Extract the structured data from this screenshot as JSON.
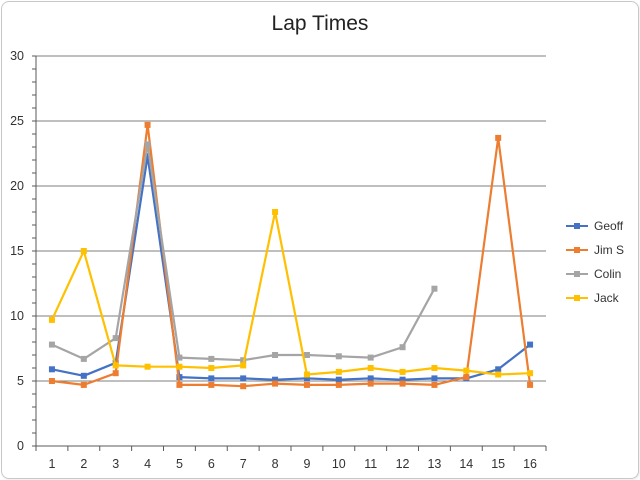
{
  "chart_data": {
    "type": "line",
    "title": "Lap Times",
    "xlabel": "",
    "ylabel": "",
    "categories": [
      "1",
      "2",
      "3",
      "4",
      "5",
      "6",
      "7",
      "8",
      "9",
      "10",
      "11",
      "12",
      "13",
      "14",
      "15",
      "16"
    ],
    "ylim": [
      0,
      30
    ],
    "yticks": [
      0,
      5,
      10,
      15,
      20,
      25,
      30
    ],
    "grid": true,
    "legend_position": "right",
    "series": [
      {
        "name": "Geoff",
        "color": "#4472C4",
        "values": [
          5.9,
          5.4,
          6.4,
          22.3,
          5.3,
          5.2,
          5.2,
          5.1,
          5.2,
          5.1,
          5.2,
          5.1,
          5.2,
          5.2,
          5.9,
          7.8
        ]
      },
      {
        "name": "Jim S",
        "color": "#ED7D31",
        "values": [
          5.0,
          4.7,
          5.6,
          24.7,
          4.7,
          4.7,
          4.6,
          4.8,
          4.7,
          4.7,
          4.8,
          4.8,
          4.7,
          5.3,
          23.7,
          4.7
        ]
      },
      {
        "name": "Colin",
        "color": "#A5A5A5",
        "values": [
          7.8,
          6.7,
          8.3,
          23.2,
          6.8,
          6.7,
          6.6,
          7.0,
          7.0,
          6.9,
          6.8,
          7.6,
          12.1,
          null,
          null,
          null
        ]
      },
      {
        "name": "Jack",
        "color": "#FFC000",
        "values": [
          9.7,
          15.0,
          6.2,
          6.1,
          6.1,
          6.0,
          6.2,
          18.0,
          5.5,
          5.7,
          6.0,
          5.7,
          6.0,
          5.8,
          5.5,
          5.6
        ]
      }
    ]
  }
}
